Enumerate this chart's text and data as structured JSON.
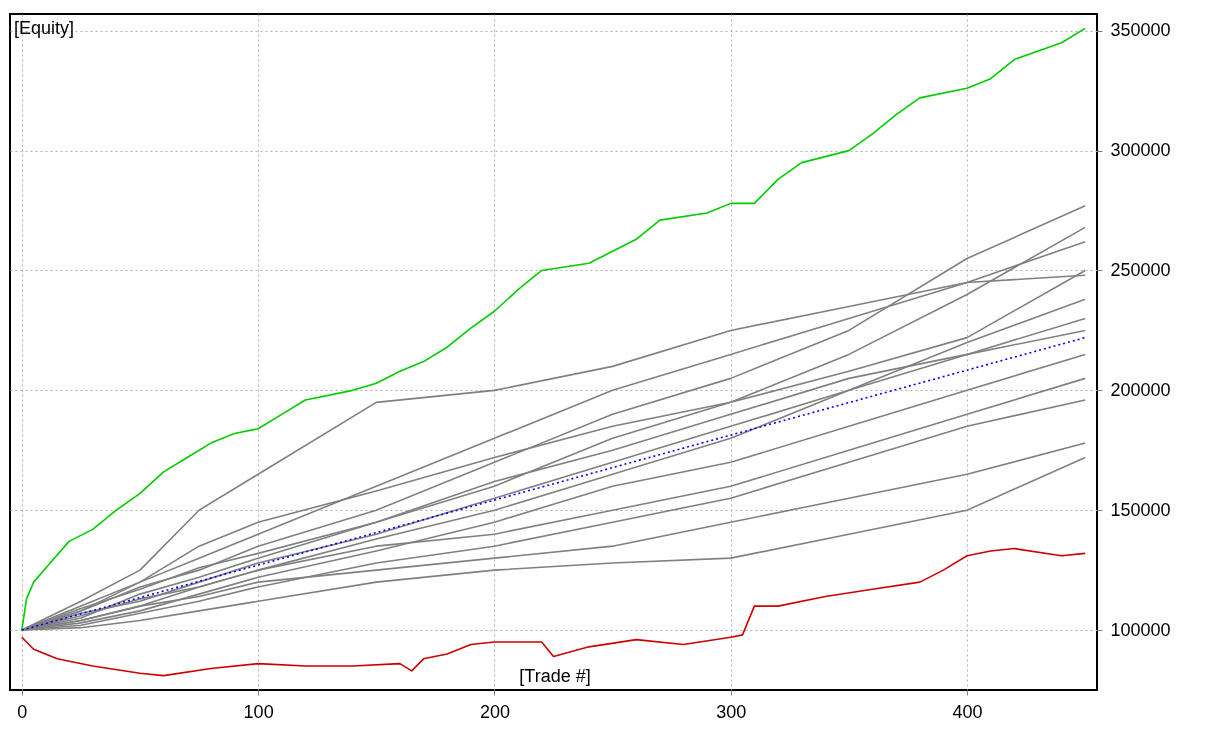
{
  "chart_data": {
    "type": "line",
    "xlabel": "[Trade #]",
    "ylabel": "[Equity]",
    "grid": true,
    "legend": false,
    "xlim": [
      -5,
      455
    ],
    "ylim": [
      75000,
      357000
    ],
    "xticks": [
      0,
      100,
      200,
      300,
      400
    ],
    "yticks": [
      100000,
      150000,
      200000,
      250000,
      300000,
      350000
    ],
    "x": [
      0,
      25,
      50,
      75,
      100,
      150,
      200,
      250,
      300,
      350,
      400,
      450
    ],
    "series": [
      {
        "color": "#808080",
        "values": [
          100000,
          108000,
          118000,
          125000,
          135000,
          150000,
          170000,
          190000,
          205000,
          225000,
          255000,
          277000
        ]
      },
      {
        "color": "#808080",
        "values": [
          100000,
          112000,
          125000,
          150000,
          165000,
          195000,
          200000,
          210000,
          225000,
          235000,
          245000,
          248000
        ]
      },
      {
        "color": "#808080",
        "values": [
          100000,
          105000,
          115000,
          122000,
          130000,
          145000,
          160000,
          180000,
          195000,
          215000,
          240000,
          268000
        ]
      },
      {
        "color": "#808080",
        "values": [
          100000,
          110000,
          120000,
          130000,
          140000,
          160000,
          180000,
          200000,
          215000,
          230000,
          245000,
          262000
        ]
      },
      {
        "color": "#808080",
        "values": [
          100000,
          107000,
          112000,
          120000,
          128000,
          140000,
          155000,
          170000,
          185000,
          200000,
          220000,
          238000
        ]
      },
      {
        "color": "#808080",
        "values": [
          100000,
          104000,
          110000,
          118000,
          125000,
          138000,
          150000,
          165000,
          180000,
          200000,
          215000,
          230000
        ]
      },
      {
        "color": "#808080",
        "values": [
          100000,
          109000,
          117000,
          126000,
          132000,
          145000,
          162000,
          175000,
          190000,
          205000,
          215000,
          225000
        ]
      },
      {
        "color": "#808080",
        "values": [
          100000,
          103000,
          108000,
          115000,
          122000,
          133000,
          145000,
          160000,
          170000,
          185000,
          200000,
          215000
        ]
      },
      {
        "color": "#808080",
        "values": [
          100000,
          106000,
          113000,
          118000,
          125000,
          135000,
          140000,
          150000,
          160000,
          175000,
          190000,
          205000
        ]
      },
      {
        "color": "#808080",
        "values": [
          100000,
          102000,
          107000,
          112000,
          118000,
          128000,
          135000,
          145000,
          155000,
          170000,
          185000,
          196000
        ]
      },
      {
        "color": "#808080",
        "values": [
          100000,
          104000,
          110000,
          114000,
          120000,
          125000,
          130000,
          135000,
          145000,
          155000,
          165000,
          178000
        ]
      },
      {
        "color": "#808080",
        "values": [
          100000,
          101000,
          104000,
          108000,
          112000,
          120000,
          125000,
          128000,
          130000,
          140000,
          150000,
          172000
        ]
      },
      {
        "color": "#808080",
        "values": [
          100000,
          108000,
          120000,
          135000,
          145000,
          158000,
          172000,
          185000,
          195000,
          208000,
          222000,
          250000
        ]
      },
      {
        "color": "#00cc00",
        "x": [
          0,
          2,
          5,
          12,
          20,
          30,
          40,
          50,
          60,
          70,
          80,
          90,
          100,
          110,
          120,
          140,
          150,
          160,
          170,
          180,
          190,
          200,
          210,
          220,
          240,
          250,
          260,
          270,
          290,
          300,
          310,
          320,
          330,
          350,
          360,
          370,
          380,
          400,
          410,
          420,
          440,
          450
        ],
        "values": [
          100000,
          113000,
          120000,
          128000,
          137000,
          142000,
          150000,
          157000,
          166000,
          172000,
          178000,
          182000,
          184000,
          190000,
          196000,
          200000,
          203000,
          208000,
          212000,
          218000,
          226000,
          233000,
          242000,
          250000,
          253000,
          258000,
          263000,
          271000,
          274000,
          278000,
          278000,
          288000,
          295000,
          300000,
          307000,
          315000,
          322000,
          326000,
          330000,
          338000,
          345000,
          351000
        ]
      },
      {
        "color": "#cc0000",
        "x": [
          0,
          5,
          15,
          30,
          50,
          60,
          80,
          100,
          120,
          140,
          160,
          165,
          170,
          180,
          190,
          200,
          220,
          225,
          240,
          260,
          280,
          300,
          305,
          310,
          320,
          340,
          360,
          380,
          390,
          400,
          410,
          420,
          440,
          450
        ],
        "values": [
          97000,
          92000,
          88000,
          85000,
          82000,
          81000,
          84000,
          86000,
          85000,
          85000,
          86000,
          83000,
          88000,
          90000,
          94000,
          95000,
          95000,
          89000,
          93000,
          96000,
          94000,
          97000,
          98000,
          110000,
          110000,
          114000,
          117000,
          120000,
          125000,
          131000,
          133000,
          134000,
          131000,
          132000
        ]
      },
      {
        "color": "#0000ff",
        "line_style": "dotted",
        "x": [
          0,
          450
        ],
        "values": [
          100000,
          222000
        ]
      }
    ]
  }
}
